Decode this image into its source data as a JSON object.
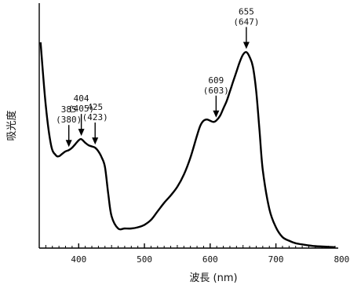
{
  "chart_data": {
    "type": "line",
    "ylabel": "吸光度",
    "xlabel": "波長 (nm)",
    "xlim": [
      340,
      790
    ],
    "ylim": [
      0,
      1
    ],
    "x_ticks": [
      "400",
      "500",
      "600",
      "700",
      "800"
    ],
    "x_tick_values": [
      400,
      500,
      600,
      700,
      800
    ],
    "y_ticks_shown": false,
    "grid": false,
    "legend": "none",
    "line_color": "#000000",
    "series": [
      {
        "x": [
          342,
          350,
          358,
          365,
          370,
          375,
          380,
          385,
          390,
          395,
          400,
          404,
          410,
          415,
          420,
          425,
          430,
          435,
          440,
          445,
          450,
          460,
          470,
          480,
          490,
          500,
          510,
          520,
          530,
          540,
          550,
          560,
          570,
          580,
          585,
          590,
          595,
          600,
          605,
          609,
          615,
          620,
          625,
          630,
          635,
          640,
          645,
          650,
          655,
          660,
          665,
          670,
          675,
          680,
          690,
          700,
          710,
          720,
          730,
          740,
          760,
          790
        ],
        "y": [
          0.84,
          0.58,
          0.42,
          0.38,
          0.375,
          0.385,
          0.395,
          0.4,
          0.41,
          0.425,
          0.44,
          0.445,
          0.43,
          0.42,
          0.415,
          0.41,
          0.395,
          0.37,
          0.33,
          0.22,
          0.13,
          0.08,
          0.08,
          0.08,
          0.085,
          0.095,
          0.115,
          0.15,
          0.185,
          0.215,
          0.25,
          0.3,
          0.37,
          0.46,
          0.5,
          0.52,
          0.525,
          0.52,
          0.515,
          0.52,
          0.54,
          0.57,
          0.6,
          0.64,
          0.68,
          0.72,
          0.76,
          0.79,
          0.8,
          0.78,
          0.74,
          0.64,
          0.48,
          0.32,
          0.16,
          0.085,
          0.045,
          0.03,
          0.02,
          0.015,
          0.008,
          0.004
        ]
      }
    ],
    "annotations": [
      {
        "x": 385,
        "line1": "385",
        "line2": "(380)"
      },
      {
        "x": 404,
        "line1": "404",
        "line2": "(405)"
      },
      {
        "x": 425,
        "line1": "425",
        "line2": "(423)"
      },
      {
        "x": 609,
        "line1": "609",
        "line2": "(603)"
      },
      {
        "x": 655,
        "line1": "655",
        "line2": "(647)"
      }
    ]
  }
}
